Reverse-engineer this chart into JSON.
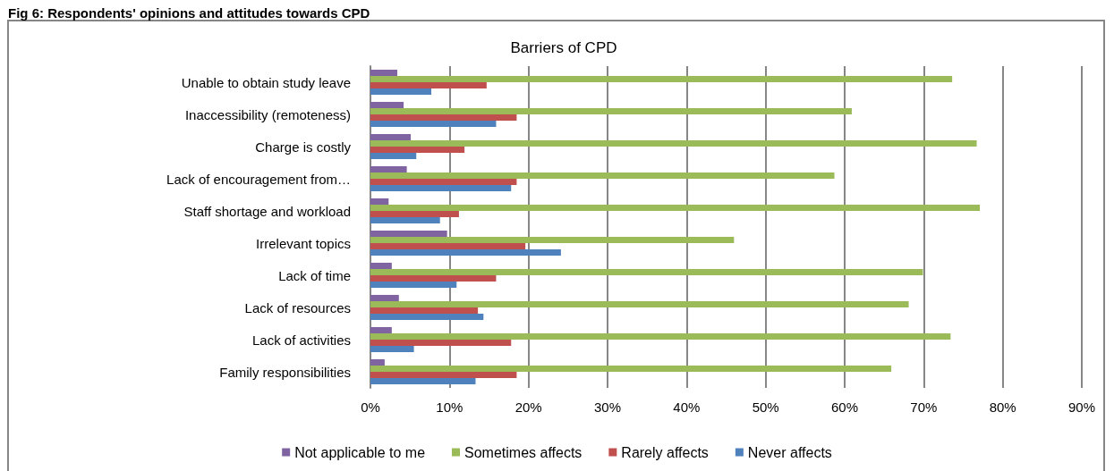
{
  "chart_data": {
    "type": "bar",
    "orientation": "horizontal",
    "title": "Fig 6: Respondents' opinions and attitudes towards CPD",
    "subtitle": "Barriers of CPD",
    "categories": [
      "Unable to obtain study leave",
      "Inaccessibility (remoteness)",
      "Charge is costly",
      "Lack of encouragement from…",
      "Staff shortage and workload",
      "Irrelevant topics",
      "Lack of time",
      "Lack of resources",
      "Lack of activities",
      "Family responsibilities"
    ],
    "series": [
      {
        "name": "Not applicable to me",
        "color": "#8064a2",
        "values": [
          3.4,
          4.2,
          5.1,
          4.6,
          2.3,
          9.7,
          2.7,
          3.6,
          2.7,
          1.8
        ]
      },
      {
        "name": "Sometimes affects",
        "color": "#9bbb59",
        "values": [
          73.6,
          60.9,
          76.7,
          58.7,
          77.1,
          46.0,
          69.9,
          68.1,
          73.4,
          65.9
        ]
      },
      {
        "name": "Rarely affects",
        "color": "#c0504d",
        "values": [
          14.7,
          18.5,
          11.9,
          18.5,
          11.2,
          19.6,
          15.9,
          13.6,
          17.8,
          18.5
        ]
      },
      {
        "name": "Never affects",
        "color": "#4f81bd",
        "values": [
          7.7,
          15.9,
          5.8,
          17.8,
          8.8,
          24.1,
          10.9,
          14.3,
          5.5,
          13.3
        ]
      }
    ],
    "xlim": [
      0,
      90
    ],
    "xticks": [
      {
        "value": 0,
        "label": "0%"
      },
      {
        "value": 10,
        "label": "10%"
      },
      {
        "value": 20,
        "label": "20%"
      },
      {
        "value": 30,
        "label": "30%"
      },
      {
        "value": 40,
        "label": "40%"
      },
      {
        "value": 50,
        "label": "50%"
      },
      {
        "value": 60,
        "label": "60%"
      },
      {
        "value": 70,
        "label": "70%"
      },
      {
        "value": 80,
        "label": "80%"
      },
      {
        "value": 90,
        "label": "90%"
      }
    ],
    "grid": "x",
    "legend": "bottom"
  }
}
